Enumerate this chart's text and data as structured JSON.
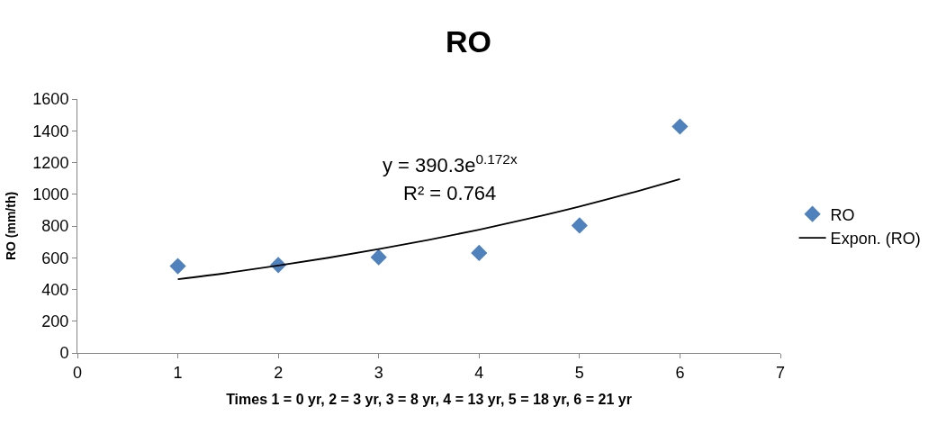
{
  "chart_data": {
    "type": "scatter",
    "title": "RO",
    "xlabel": "Times 1 = 0 yr, 2 = 3 yr, 3 = 8 yr, 4 = 13 yr, 5 = 18 yr, 6 = 21 yr",
    "ylabel": "RO (mm/th)",
    "xlim": [
      0,
      7
    ],
    "xticks": [
      0,
      1,
      2,
      3,
      4,
      5,
      6,
      7
    ],
    "ylim": [
      0,
      1600
    ],
    "yticks": [
      0,
      200,
      400,
      600,
      800,
      1000,
      1200,
      1400,
      1600
    ],
    "legend": "right",
    "marker": "diamond",
    "series": [
      {
        "name": "RO",
        "color": "#4f81bd",
        "x": [
          1,
          2,
          3,
          4,
          5,
          6
        ],
        "values": [
          547,
          554,
          603,
          630,
          803,
          1427
        ]
      },
      {
        "name": "Expon. (RO)",
        "type": "line",
        "color": "#000000",
        "line_style": "solid",
        "marker": "none",
        "x": [
          1,
          1.5,
          2,
          2.5,
          3,
          3.5,
          4,
          4.5,
          5,
          5.5,
          6
        ],
        "values": [
          464,
          505,
          551,
          600,
          654,
          713,
          777,
          847,
          923,
          1006,
          1096
        ]
      }
    ],
    "annotations": [
      "y = 390.3e$^{0.172x}$",
      "R² = 0.764"
    ]
  }
}
